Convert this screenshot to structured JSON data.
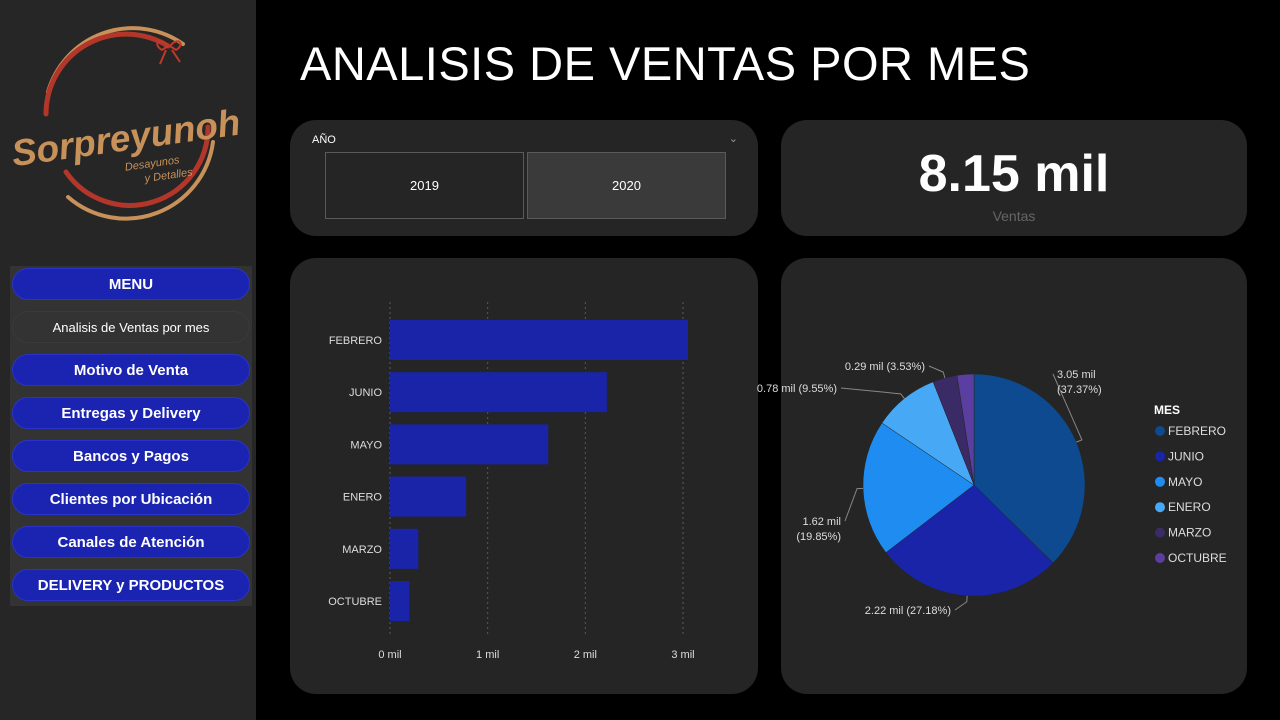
{
  "brand": {
    "name": "Sorpreyunoh",
    "tagline_line1": "Desayunos",
    "tagline_line2": "y Detalles",
    "colors": {
      "ring": "#b3362a",
      "text": "#c8915a",
      "ribbon": "#c0392b"
    }
  },
  "menu": {
    "header": "MENU",
    "items": [
      {
        "label": "Analisis de Ventas por mes",
        "active": true
      },
      {
        "label": "Motivo de Venta",
        "active": false
      },
      {
        "label": "Entregas y Delivery",
        "active": false
      },
      {
        "label": "Bancos y Pagos",
        "active": false
      },
      {
        "label": "Clientes por Ubicación",
        "active": false
      },
      {
        "label": "Canales de Atención",
        "active": false
      },
      {
        "label": "DELIVERY y PRODUCTOS",
        "active": false
      }
    ]
  },
  "page_title": "ANALISIS DE VENTAS POR MES",
  "year_slicer": {
    "label": "AÑO",
    "options": [
      "2019",
      "2020"
    ],
    "selected": "2020",
    "chevron_icon": "chevron-down-icon"
  },
  "kpi": {
    "value": "8.15 mil",
    "label": "Ventas"
  },
  "chart_data": [
    {
      "type": "bar",
      "orientation": "horizontal",
      "categories": [
        "FEBRERO",
        "JUNIO",
        "MAYO",
        "ENERO",
        "MARZO",
        "OCTUBRE"
      ],
      "values": [
        3.05,
        2.22,
        1.62,
        0.78,
        0.29,
        0.2
      ],
      "x_ticks": [
        "0 mil",
        "1 mil",
        "2 mil",
        "3 mil"
      ],
      "xlim": [
        0,
        3
      ],
      "grid": true,
      "color": "#1a24a8"
    },
    {
      "type": "pie",
      "legend_title": "MES",
      "legend_position": "right",
      "slices": [
        {
          "name": "FEBRERO",
          "value": 3.05,
          "pct": 37.37,
          "label_line1": "3.05 mil",
          "label_line2": "(37.37%)",
          "color": "#0d4a8f"
        },
        {
          "name": "JUNIO",
          "value": 2.22,
          "pct": 27.18,
          "label_line1": "2.22 mil (27.18%)",
          "label_line2": "",
          "color": "#1a24a8"
        },
        {
          "name": "MAYO",
          "value": 1.62,
          "pct": 19.85,
          "label_line1": "1.62 mil",
          "label_line2": "(19.85%)",
          "color": "#1e8cf0"
        },
        {
          "name": "ENERO",
          "value": 0.78,
          "pct": 9.55,
          "label_line1": "0.78 mil (9.55%)",
          "label_line2": "",
          "color": "#47a8f5"
        },
        {
          "name": "MARZO",
          "value": 0.29,
          "pct": 3.53,
          "label_line1": "0.29 mil (3.53%)",
          "label_line2": "",
          "color": "#3a2a66"
        },
        {
          "name": "OCTUBRE",
          "value": 0.2,
          "pct": 2.52,
          "label_line1": "",
          "label_line2": "",
          "color": "#5b3fa0"
        }
      ]
    }
  ]
}
